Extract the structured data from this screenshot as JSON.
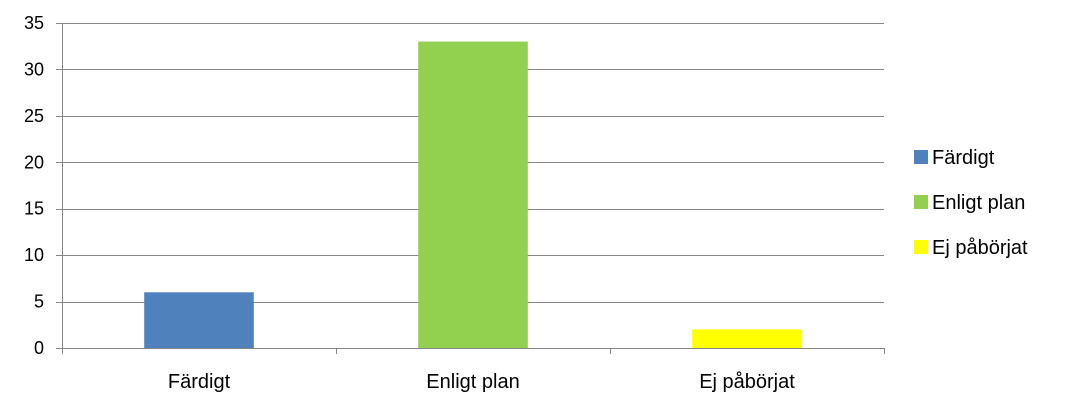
{
  "chart_data": {
    "type": "bar",
    "title": "",
    "xlabel": "",
    "ylabel": "",
    "categories": [
      "Färdigt",
      "Enligt plan",
      "Ej påbörjat"
    ],
    "values": [
      6,
      33,
      2
    ],
    "colors": [
      "#4f81bd",
      "#92d050",
      "#ffff00"
    ],
    "ylim": [
      0,
      35
    ],
    "yticks": [
      0,
      5,
      10,
      15,
      20,
      25,
      30,
      35
    ],
    "grid": true,
    "legend": {
      "position": "right",
      "entries": [
        "Färdigt",
        "Enligt plan",
        "Ej påbörjat"
      ]
    }
  }
}
